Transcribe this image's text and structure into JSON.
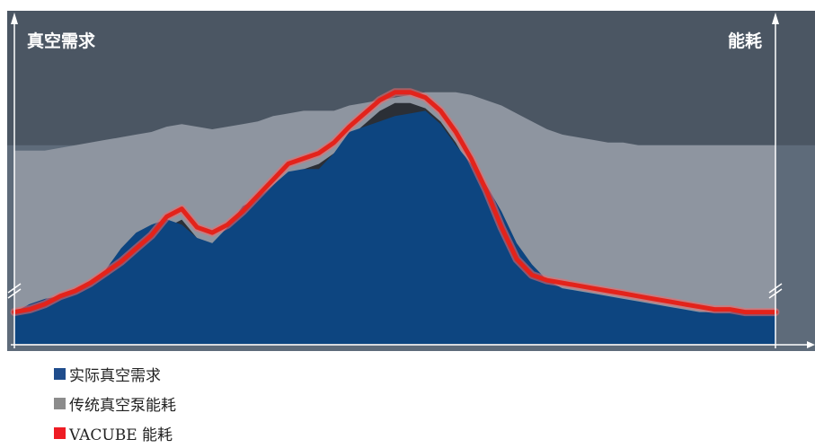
{
  "chart_data": {
    "type": "area",
    "left_axis_label": "真空需求",
    "right_axis_label": "能耗",
    "x": [
      0,
      2,
      4,
      6,
      8,
      10,
      12,
      14,
      16,
      18,
      20,
      22,
      24,
      26,
      28,
      30,
      32,
      34,
      36,
      38,
      40,
      42,
      44,
      46,
      48,
      50,
      52,
      54,
      56,
      58,
      60,
      62,
      64,
      66,
      68,
      70,
      72,
      74,
      76,
      78,
      80,
      82,
      84,
      86,
      88,
      90,
      92,
      94,
      96,
      98,
      100
    ],
    "series": [
      {
        "name": "实际真空需求",
        "color": "#0d4580",
        "values": [
          0.12,
          0.15,
          0.17,
          0.18,
          0.2,
          0.23,
          0.28,
          0.36,
          0.42,
          0.45,
          0.47,
          0.45,
          0.4,
          0.38,
          0.44,
          0.52,
          0.55,
          0.6,
          0.65,
          0.66,
          0.66,
          0.72,
          0.8,
          0.82,
          0.84,
          0.86,
          0.87,
          0.88,
          0.83,
          0.75,
          0.68,
          0.6,
          0.5,
          0.38,
          0.3,
          0.24,
          0.21,
          0.2,
          0.19,
          0.18,
          0.17,
          0.16,
          0.15,
          0.14,
          0.13,
          0.12,
          0.12,
          0.12,
          0.12,
          0.12,
          0.12
        ]
      },
      {
        "name": "传统真空泵能耗",
        "color": "#8e95a0",
        "values": [
          0.73,
          0.73,
          0.73,
          0.74,
          0.75,
          0.76,
          0.77,
          0.78,
          0.79,
          0.8,
          0.82,
          0.83,
          0.82,
          0.81,
          0.82,
          0.83,
          0.84,
          0.86,
          0.87,
          0.88,
          0.88,
          0.88,
          0.9,
          0.91,
          0.92,
          0.93,
          0.94,
          0.95,
          0.95,
          0.95,
          0.94,
          0.92,
          0.9,
          0.87,
          0.84,
          0.81,
          0.79,
          0.78,
          0.77,
          0.76,
          0.76,
          0.75,
          0.75,
          0.75,
          0.75,
          0.75,
          0.75,
          0.75,
          0.75,
          0.75,
          0.75
        ]
      },
      {
        "name": "VACUBE 能耗",
        "color": "#e3231b",
        "values": [
          0.12,
          0.13,
          0.15,
          0.18,
          0.2,
          0.23,
          0.27,
          0.31,
          0.36,
          0.41,
          0.48,
          0.51,
          0.44,
          0.42,
          0.45,
          0.5,
          0.56,
          0.62,
          0.68,
          0.7,
          0.72,
          0.76,
          0.82,
          0.87,
          0.92,
          0.95,
          0.95,
          0.93,
          0.88,
          0.8,
          0.7,
          0.58,
          0.44,
          0.32,
          0.26,
          0.24,
          0.23,
          0.22,
          0.21,
          0.2,
          0.19,
          0.18,
          0.17,
          0.16,
          0.15,
          0.14,
          0.13,
          0.13,
          0.12,
          0.12,
          0.12
        ]
      }
    ],
    "colors": {
      "background": "#5e6b7a",
      "top_band": "#4b5663",
      "shadow": "#2b2f36",
      "axis": "#ffffff",
      "glow": "#f06a6a"
    }
  },
  "legend": [
    {
      "label": "实际真空需求",
      "color": "#1f4c8c"
    },
    {
      "label": "传统真空泵能耗",
      "color": "#8c8c8c"
    },
    {
      "label": "VACUBE 能耗",
      "color": "#ee1c24"
    }
  ]
}
